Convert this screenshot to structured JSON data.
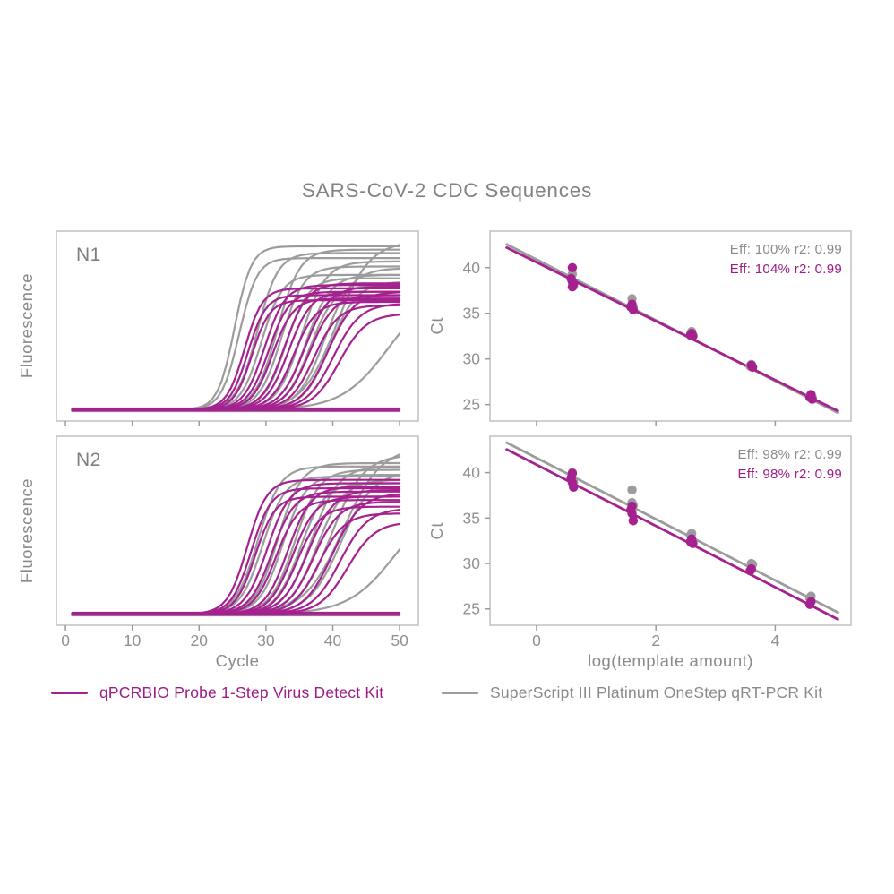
{
  "title": "SARS-CoV-2 CDC Sequences",
  "colors": {
    "magenta": "#A62190",
    "gray": "#9C9C9C",
    "magenta_text": "#9C1B87",
    "gray_text": "#8A8A8A",
    "axis_text": "#909090",
    "border": "#C0C0C0",
    "tick": "#9A9A9A"
  },
  "axes": {
    "amp_xlabel": "Cycle",
    "amp_ylabel": "Fluorescence",
    "std_xlabel": "log(template amount)",
    "std_ylabel": "Ct"
  },
  "legend": {
    "items": [
      {
        "label": "qPCRBIO Probe 1-Step Virus Detect Kit",
        "color_key": "magenta"
      },
      {
        "label": "SuperScript III Platinum OneStep qRT-PCR Kit",
        "color_key": "gray"
      }
    ]
  },
  "chart_data": [
    {
      "id": "n1-amplification",
      "type": "line",
      "panel_label": "N1",
      "xlabel": "Cycle",
      "ylabel": "Fluorescence",
      "xlim": [
        -1.35,
        52.8
      ],
      "xticks": [
        0,
        10,
        20,
        30,
        40,
        50
      ],
      "baseline": 0.025,
      "curve_x_range": [
        1,
        50
      ],
      "series": [
        {
          "name": "SuperScript III Platinum OneStep qRT-PCR Kit",
          "color_key": "gray",
          "flat": [
            0.016,
            0.028
          ],
          "sigmoids": [
            [
              25.3,
              0.97,
              0.8
            ],
            [
              26.0,
              0.9,
              0.75
            ],
            [
              28.7,
              0.93,
              0.65
            ],
            [
              29.3,
              0.8,
              0.65
            ],
            [
              31.7,
              0.95,
              0.6
            ],
            [
              32.3,
              0.85,
              0.6
            ],
            [
              33.0,
              0.78,
              0.6
            ],
            [
              35.3,
              0.88,
              0.55
            ],
            [
              36.0,
              0.8,
              0.55
            ],
            [
              36.6,
              0.74,
              0.55
            ],
            [
              38.8,
              0.84,
              0.5
            ],
            [
              39.6,
              0.76,
              0.5
            ],
            [
              40.5,
              1.0,
              0.4
            ],
            [
              48.5,
              0.75,
              0.28
            ]
          ]
        },
        {
          "name": "qPCRBIO Probe 1-Step Virus Detect Kit",
          "color_key": "magenta",
          "flat": [
            0.02,
            0.032
          ],
          "sigmoids": [
            [
              26.8,
              0.72,
              0.75
            ],
            [
              27.3,
              0.68,
              0.75
            ],
            [
              27.9,
              0.65,
              0.75
            ],
            [
              29.8,
              0.74,
              0.65
            ],
            [
              30.4,
              0.7,
              0.65
            ],
            [
              31.0,
              0.66,
              0.65
            ],
            [
              32.8,
              0.75,
              0.6
            ],
            [
              33.4,
              0.7,
              0.6
            ],
            [
              34.1,
              0.64,
              0.6
            ],
            [
              35.8,
              0.73,
              0.55
            ],
            [
              36.5,
              0.68,
              0.55
            ],
            [
              37.2,
              0.62,
              0.55
            ],
            [
              39.3,
              0.7,
              0.5
            ],
            [
              40.1,
              0.63,
              0.5
            ],
            [
              41.0,
              0.57,
              0.5
            ]
          ]
        }
      ]
    },
    {
      "id": "n1-standard-curve",
      "type": "scatter",
      "xlabel": "log(template amount)",
      "ylabel": "Ct",
      "xlim": [
        -0.78,
        5.27
      ],
      "ylim": [
        23.2,
        44.0
      ],
      "xticks": [
        0,
        2,
        4
      ],
      "yticks": [
        25,
        30,
        35,
        40
      ],
      "stats": [
        {
          "label": "Eff: 100% r2: 0.99",
          "color_key": "gray"
        },
        {
          "label": "Eff: 104% r2: 0.99",
          "color_key": "magenta"
        }
      ],
      "series": [
        {
          "name": "SuperScript III Platinum OneStep qRT-PCR Kit",
          "color_key": "gray",
          "fit_line": {
            "x1": -0.5,
            "y1": 42.55,
            "x2": 5.05,
            "y2": 24.1,
            "efficiency": "100%",
            "r2": 0.99
          },
          "points": [
            [
              0.6,
              39.3
            ],
            [
              0.6,
              38.4
            ],
            [
              0.62,
              38.0
            ],
            [
              1.6,
              36.6
            ],
            [
              1.6,
              35.9
            ],
            [
              1.62,
              35.7
            ],
            [
              2.6,
              33.0
            ],
            [
              2.58,
              32.7
            ],
            [
              2.62,
              32.6
            ],
            [
              3.6,
              29.4
            ],
            [
              3.58,
              29.2
            ],
            [
              3.62,
              29.1
            ],
            [
              4.6,
              26.0
            ],
            [
              4.58,
              25.9
            ],
            [
              4.62,
              25.8
            ]
          ]
        },
        {
          "name": "qPCRBIO Probe 1-Step Virus Detect Kit",
          "color_key": "magenta",
          "fit_line": {
            "x1": -0.5,
            "y1": 42.2,
            "x2": 5.05,
            "y2": 24.3,
            "efficiency": "104%",
            "r2": 0.99
          },
          "points": [
            [
              0.6,
              40.0
            ],
            [
              0.58,
              38.8
            ],
            [
              0.6,
              38.5
            ],
            [
              0.62,
              38.2
            ],
            [
              0.6,
              37.9
            ],
            [
              1.6,
              36.0
            ],
            [
              1.58,
              35.7
            ],
            [
              1.62,
              35.4
            ],
            [
              2.6,
              32.8
            ],
            [
              2.58,
              32.6
            ],
            [
              2.62,
              32.5
            ],
            [
              3.6,
              29.3
            ],
            [
              3.62,
              29.1
            ],
            [
              4.6,
              26.1
            ],
            [
              4.58,
              25.8
            ],
            [
              4.62,
              25.6
            ]
          ]
        }
      ]
    },
    {
      "id": "n2-amplification",
      "type": "line",
      "panel_label": "N2",
      "xlabel": "Cycle",
      "ylabel": "Fluorescence",
      "xlim": [
        -1.35,
        52.8
      ],
      "xticks": [
        0,
        10,
        20,
        30,
        40,
        50
      ],
      "baseline": 0.025,
      "curve_x_range": [
        1,
        50
      ],
      "series": [
        {
          "name": "SuperScript III Platinum OneStep qRT-PCR Kit",
          "color_key": "gray",
          "flat": [
            0.016,
            0.028
          ],
          "sigmoids": [
            [
              28.8,
              0.88,
              0.6
            ],
            [
              29.5,
              0.82,
              0.6
            ],
            [
              31.8,
              0.9,
              0.58
            ],
            [
              32.5,
              0.83,
              0.58
            ],
            [
              34.3,
              0.86,
              0.55
            ],
            [
              35.1,
              0.78,
              0.55
            ],
            [
              36.8,
              0.88,
              0.5
            ],
            [
              37.6,
              0.8,
              0.5
            ],
            [
              39.8,
              0.95,
              0.42
            ],
            [
              41.2,
              0.85,
              0.42
            ],
            [
              41.5,
              1.0,
              0.35
            ],
            [
              49.5,
              0.72,
              0.28
            ]
          ]
        },
        {
          "name": "qPCRBIO Probe 1-Step Virus Detect Kit",
          "color_key": "magenta",
          "flat": [
            0.02,
            0.032
          ],
          "sigmoids": [
            [
              27.2,
              0.8,
              0.68
            ],
            [
              27.8,
              0.75,
              0.68
            ],
            [
              28.4,
              0.7,
              0.68
            ],
            [
              30.2,
              0.78,
              0.6
            ],
            [
              30.9,
              0.73,
              0.6
            ],
            [
              31.5,
              0.68,
              0.6
            ],
            [
              33.3,
              0.76,
              0.58
            ],
            [
              34.0,
              0.7,
              0.58
            ],
            [
              34.7,
              0.64,
              0.58
            ],
            [
              36.3,
              0.74,
              0.52
            ],
            [
              37.1,
              0.67,
              0.52
            ],
            [
              37.9,
              0.6,
              0.52
            ],
            [
              40.0,
              0.72,
              0.48
            ],
            [
              41.1,
              0.63,
              0.48
            ],
            [
              42.2,
              0.55,
              0.48
            ]
          ]
        }
      ]
    },
    {
      "id": "n2-standard-curve",
      "type": "scatter",
      "xlabel": "log(template amount)",
      "ylabel": "Ct",
      "xlim": [
        -0.78,
        5.27
      ],
      "ylim": [
        23.2,
        44.0
      ],
      "xticks": [
        0,
        2,
        4
      ],
      "yticks": [
        25,
        30,
        35,
        40
      ],
      "stats": [
        {
          "label": "Eff: 98% r2: 0.99",
          "color_key": "gray"
        },
        {
          "label": "Eff: 98% r2: 0.99",
          "color_key": "magenta"
        }
      ],
      "series": [
        {
          "name": "SuperScript III Platinum OneStep qRT-PCR Kit",
          "color_key": "gray",
          "fit_line": {
            "x1": -0.5,
            "y1": 43.3,
            "x2": 5.05,
            "y2": 24.6,
            "efficiency": "98%",
            "r2": 0.99
          },
          "points": [
            [
              0.6,
              40.0
            ],
            [
              0.6,
              39.3
            ],
            [
              0.62,
              38.9
            ],
            [
              1.6,
              38.1
            ],
            [
              1.6,
              36.7
            ],
            [
              1.62,
              36.4
            ],
            [
              2.6,
              33.3
            ],
            [
              2.58,
              33.1
            ],
            [
              3.6,
              30.0
            ],
            [
              3.62,
              29.9
            ],
            [
              4.6,
              26.4
            ],
            [
              4.58,
              26.2
            ]
          ]
        },
        {
          "name": "qPCRBIO Probe 1-Step Virus Detect Kit",
          "color_key": "magenta",
          "fit_line": {
            "x1": -0.5,
            "y1": 42.55,
            "x2": 5.05,
            "y2": 23.85,
            "efficiency": "98%",
            "r2": 0.99
          },
          "points": [
            [
              0.6,
              39.9
            ],
            [
              0.58,
              39.4
            ],
            [
              0.6,
              38.9
            ],
            [
              0.62,
              38.4
            ],
            [
              1.6,
              36.3
            ],
            [
              1.58,
              35.9
            ],
            [
              1.6,
              35.5
            ],
            [
              1.62,
              34.7
            ],
            [
              2.6,
              32.7
            ],
            [
              2.58,
              32.4
            ],
            [
              2.62,
              32.2
            ],
            [
              3.6,
              29.4
            ],
            [
              3.58,
              29.2
            ],
            [
              4.6,
              25.8
            ],
            [
              4.58,
              25.5
            ]
          ]
        }
      ]
    }
  ]
}
